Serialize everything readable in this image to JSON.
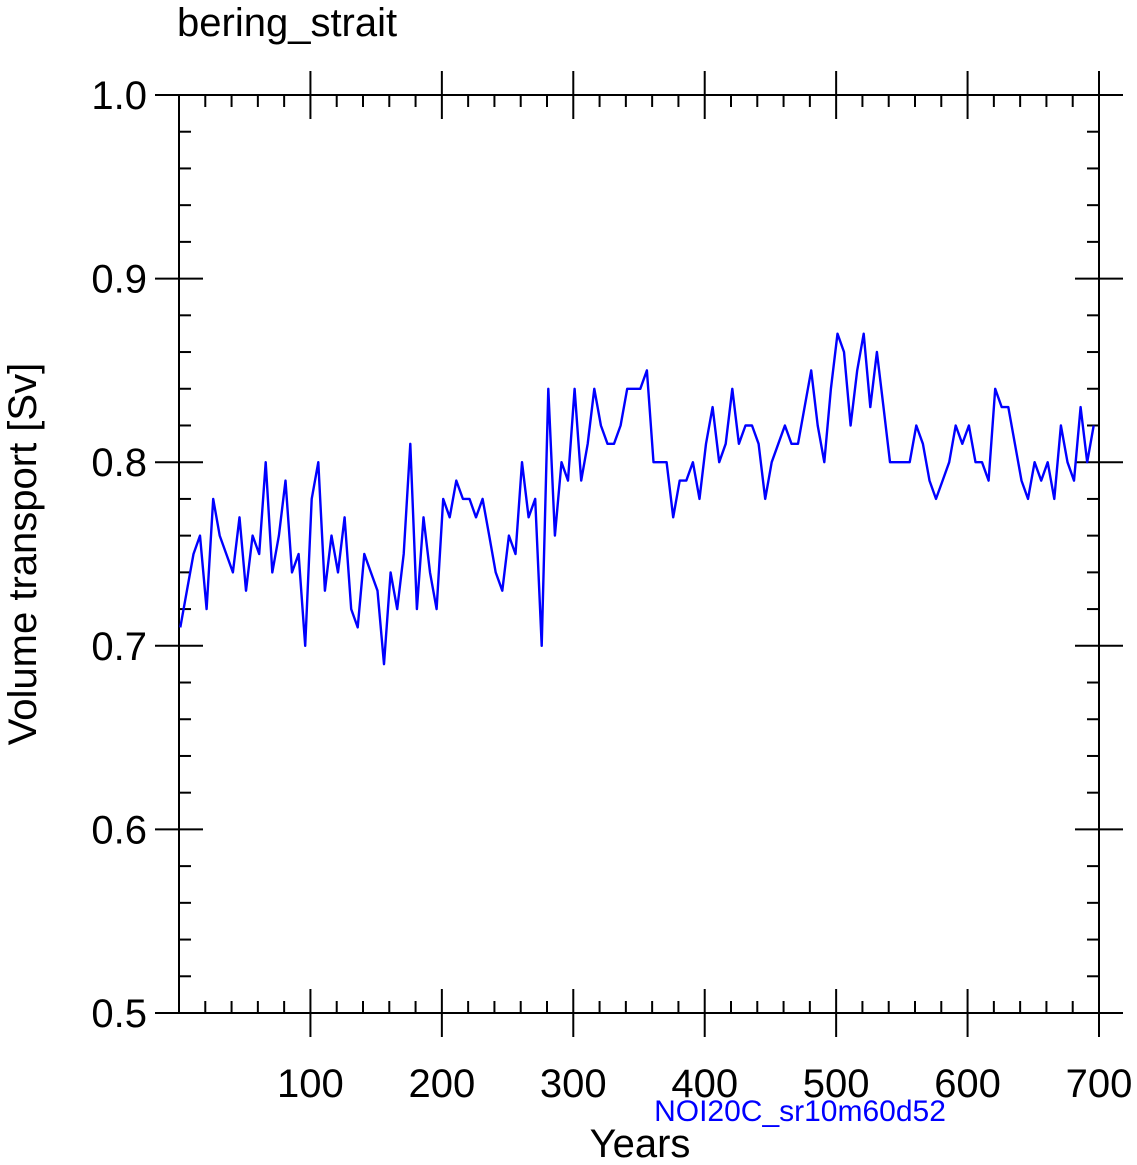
{
  "chart_data": {
    "type": "line",
    "title": "bering_strait",
    "xlabel": "Years",
    "ylabel": "Volume transport [Sv]",
    "annotation": "NOI20C_sr10m60d52",
    "xlim": [
      1,
      700
    ],
    "ylim": [
      0.5,
      1.0
    ],
    "x_ticks": [
      100,
      200,
      300,
      400,
      500,
      600,
      700
    ],
    "y_ticks": [
      0.5,
      0.6,
      0.7,
      0.8,
      0.9,
      1.0
    ],
    "y_tick_labels": [
      "0.5",
      "0.6",
      "0.7",
      "0.8",
      "0.9",
      "1.0"
    ],
    "x_tick_labels": [
      "100",
      "200",
      "300",
      "400",
      "500",
      "600",
      "700"
    ],
    "line_color": "#0000ff",
    "annotation_color": "#0000ff",
    "grid": false,
    "series": [
      {
        "x_start": 1,
        "x_step": 5,
        "values": [
          0.71,
          0.73,
          0.75,
          0.76,
          0.72,
          0.78,
          0.76,
          0.75,
          0.74,
          0.77,
          0.73,
          0.76,
          0.75,
          0.8,
          0.74,
          0.76,
          0.79,
          0.74,
          0.75,
          0.7,
          0.78,
          0.8,
          0.73,
          0.76,
          0.74,
          0.77,
          0.72,
          0.71,
          0.75,
          0.74,
          0.73,
          0.69,
          0.74,
          0.72,
          0.75,
          0.81,
          0.72,
          0.77,
          0.74,
          0.72,
          0.78,
          0.77,
          0.79,
          0.78,
          0.78,
          0.77,
          0.78,
          0.76,
          0.74,
          0.73,
          0.76,
          0.75,
          0.8,
          0.77,
          0.78,
          0.7,
          0.84,
          0.76,
          0.8,
          0.79,
          0.84,
          0.79,
          0.81,
          0.84,
          0.82,
          0.81,
          0.81,
          0.82,
          0.84,
          0.84,
          0.84,
          0.85,
          0.8,
          0.8,
          0.8,
          0.77,
          0.79,
          0.79,
          0.8,
          0.78,
          0.81,
          0.83,
          0.8,
          0.81,
          0.84,
          0.81,
          0.82,
          0.82,
          0.81,
          0.78,
          0.8,
          0.81,
          0.82,
          0.81,
          0.81,
          0.83,
          0.85,
          0.82,
          0.8,
          0.84,
          0.87,
          0.86,
          0.82,
          0.85,
          0.87,
          0.83,
          0.86,
          0.83,
          0.8,
          0.8,
          0.8,
          0.8,
          0.82,
          0.81,
          0.79,
          0.78,
          0.79,
          0.8,
          0.82,
          0.81,
          0.82,
          0.8,
          0.8,
          0.79,
          0.84,
          0.83,
          0.83,
          0.81,
          0.79,
          0.78,
          0.8,
          0.79,
          0.8,
          0.78,
          0.82,
          0.8,
          0.79,
          0.83,
          0.8,
          0.82
        ]
      }
    ]
  }
}
